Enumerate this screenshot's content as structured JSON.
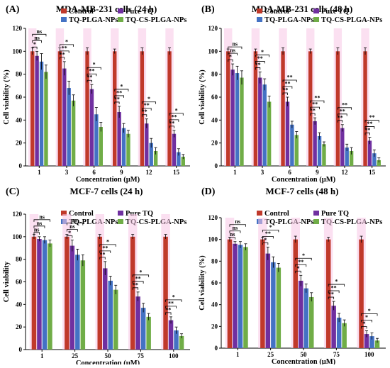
{
  "figure": {
    "panels": [
      {
        "letter": "(A)",
        "title": "MDA-MB-231 cells (24 h)"
      },
      {
        "letter": "(B)",
        "title": "MDA-MB-231 cells (48 h)"
      },
      {
        "letter": "(C)",
        "title": "MCF-7 cells (24 h)"
      },
      {
        "letter": "(D)",
        "title": "MCF-7 cells (48 h)"
      }
    ]
  },
  "colors": {
    "Control": "#c0392b",
    "Pure TQ": "#7030a0",
    "TQ-PLGA-NPs": "#4472c4",
    "TQ-CS-PLGA-NPs": "#70ad47",
    "band": "#f7c7e6"
  },
  "chart_data": [
    {
      "type": "bar",
      "title": "MDA-MB-231 cells (24 h)",
      "xlabel": "Concentration (µM)",
      "ylabel": "Cell viability (%)",
      "ylim": [
        0,
        120
      ],
      "yticks": [
        0,
        20,
        40,
        60,
        80,
        100,
        120
      ],
      "categories": [
        "1",
        "3",
        "6",
        "9",
        "12",
        "15"
      ],
      "legend": "top-right",
      "series": [
        {
          "name": "Control",
          "values": [
            100,
            100,
            100,
            100,
            100,
            100
          ],
          "errors": [
            3,
            3,
            3,
            2,
            3,
            3
          ]
        },
        {
          "name": "Pure TQ",
          "values": [
            96,
            85,
            67,
            47,
            37,
            28
          ],
          "errors": [
            4,
            6,
            4,
            5,
            4,
            3
          ]
        },
        {
          "name": "TQ-PLGA-NPs",
          "values": [
            91,
            68,
            45,
            33,
            20,
            12
          ],
          "errors": [
            7,
            6,
            6,
            4,
            4,
            3
          ]
        },
        {
          "name": "TQ-CS-PLGA-NPs",
          "values": [
            82,
            57,
            34,
            28,
            13,
            8
          ],
          "errors": [
            6,
            5,
            4,
            3,
            3,
            2
          ]
        }
      ],
      "sig_labels": [
        [
          "*",
          "ns",
          "ns"
        ],
        [
          "**",
          "**",
          "*"
        ],
        [
          "**",
          "**",
          "*"
        ],
        [
          "**",
          "**",
          "*"
        ],
        [
          "**",
          "**",
          "*"
        ],
        [
          "**",
          "**",
          "*"
        ]
      ]
    },
    {
      "type": "bar",
      "title": "MDA-MB-231 cells (48 h)",
      "xlabel": "Concentration (µM)",
      "ylabel": "Cell viability (%)",
      "ylim": [
        0,
        120
      ],
      "yticks": [
        0,
        20,
        40,
        60,
        80,
        100,
        120
      ],
      "categories": [
        "1",
        "3",
        "6",
        "9",
        "12",
        "15"
      ],
      "legend": "top-right",
      "series": [
        {
          "name": "Control",
          "values": [
            100,
            100,
            100,
            100,
            100,
            100
          ],
          "errors": [
            2,
            2,
            3,
            2,
            3,
            3
          ]
        },
        {
          "name": "Pure TQ",
          "values": [
            84,
            77,
            56,
            39,
            33,
            22
          ],
          "errors": [
            5,
            5,
            4,
            3,
            3,
            3
          ]
        },
        {
          "name": "TQ-PLGA-NPs",
          "values": [
            81,
            71,
            36,
            26,
            16,
            11
          ],
          "errors": [
            6,
            5,
            3,
            3,
            3,
            3
          ]
        },
        {
          "name": "TQ-CS-PLGA-NPs",
          "values": [
            77,
            56,
            27,
            19,
            13,
            5
          ],
          "errors": [
            6,
            5,
            3,
            2,
            3,
            2
          ]
        }
      ],
      "sig_labels": [
        [
          "*",
          "ns",
          "ns"
        ],
        [
          "**",
          "**",
          "*"
        ],
        [
          "**",
          "**",
          "**"
        ],
        [
          "**",
          "**",
          "**"
        ],
        [
          "**",
          "**",
          "**"
        ],
        [
          "**",
          "**",
          "**"
        ]
      ]
    },
    {
      "type": "bar",
      "title": "MCF-7 cells (24 h)",
      "xlabel": "Concentration (µM)",
      "ylabel": "Cell viability",
      "ylim": [
        0,
        120
      ],
      "yticks": [
        0,
        20,
        40,
        60,
        80,
        100,
        120
      ],
      "categories": [
        "1",
        "25",
        "50",
        "75",
        "100"
      ],
      "legend": "top-right",
      "series": [
        {
          "name": "Control",
          "values": [
            100,
            100,
            100,
            100,
            100
          ],
          "errors": [
            2,
            2,
            2,
            2,
            2
          ]
        },
        {
          "name": "Pure TQ",
          "values": [
            98,
            92,
            72,
            47,
            26
          ],
          "errors": [
            2,
            5,
            6,
            4,
            3
          ]
        },
        {
          "name": "TQ-PLGA-NPs",
          "values": [
            97,
            84,
            61,
            37,
            17
          ],
          "errors": [
            3,
            5,
            4,
            4,
            3
          ]
        },
        {
          "name": "TQ-CS-PLGA-NPs",
          "values": [
            94,
            79,
            53,
            29,
            12
          ],
          "errors": [
            3,
            5,
            4,
            3,
            2
          ]
        }
      ],
      "sig_labels": [
        [
          "ns",
          "ns",
          "ns"
        ],
        [
          "*",
          "ns",
          "ns"
        ],
        [
          "**",
          "**",
          "*"
        ],
        [
          "**",
          "**",
          "*"
        ],
        [
          "**",
          "**",
          "*"
        ]
      ]
    },
    {
      "type": "bar",
      "title": "MCF-7 cells (48 h)",
      "xlabel": "Concentration (µM)",
      "ylabel": "Cell viability (%)",
      "ylim": [
        0,
        120
      ],
      "yticks": [
        0,
        20,
        40,
        60,
        80,
        100,
        120
      ],
      "categories": [
        "1",
        "25",
        "50",
        "75",
        "100"
      ],
      "legend": "top-right",
      "series": [
        {
          "name": "Control",
          "values": [
            100,
            100,
            100,
            100,
            100
          ],
          "errors": [
            2,
            2,
            3,
            2,
            3
          ]
        },
        {
          "name": "Pure TQ",
          "values": [
            96,
            87,
            62,
            39,
            13
          ],
          "errors": [
            2,
            6,
            5,
            4,
            3
          ]
        },
        {
          "name": "TQ-PLGA-NPs",
          "values": [
            95,
            79,
            55,
            28,
            11
          ],
          "errors": [
            3,
            5,
            4,
            4,
            3
          ]
        },
        {
          "name": "TQ-CS-PLGA-NPs",
          "values": [
            93,
            74,
            47,
            23,
            7
          ],
          "errors": [
            3,
            4,
            4,
            3,
            2
          ]
        }
      ],
      "sig_labels": [
        [
          "ns",
          "ns",
          "ns"
        ],
        [
          "*",
          "**",
          "*"
        ],
        [
          "*",
          "**",
          "*"
        ],
        [
          "**",
          "**",
          "*"
        ],
        [
          "*",
          "*",
          "*"
        ]
      ]
    }
  ]
}
